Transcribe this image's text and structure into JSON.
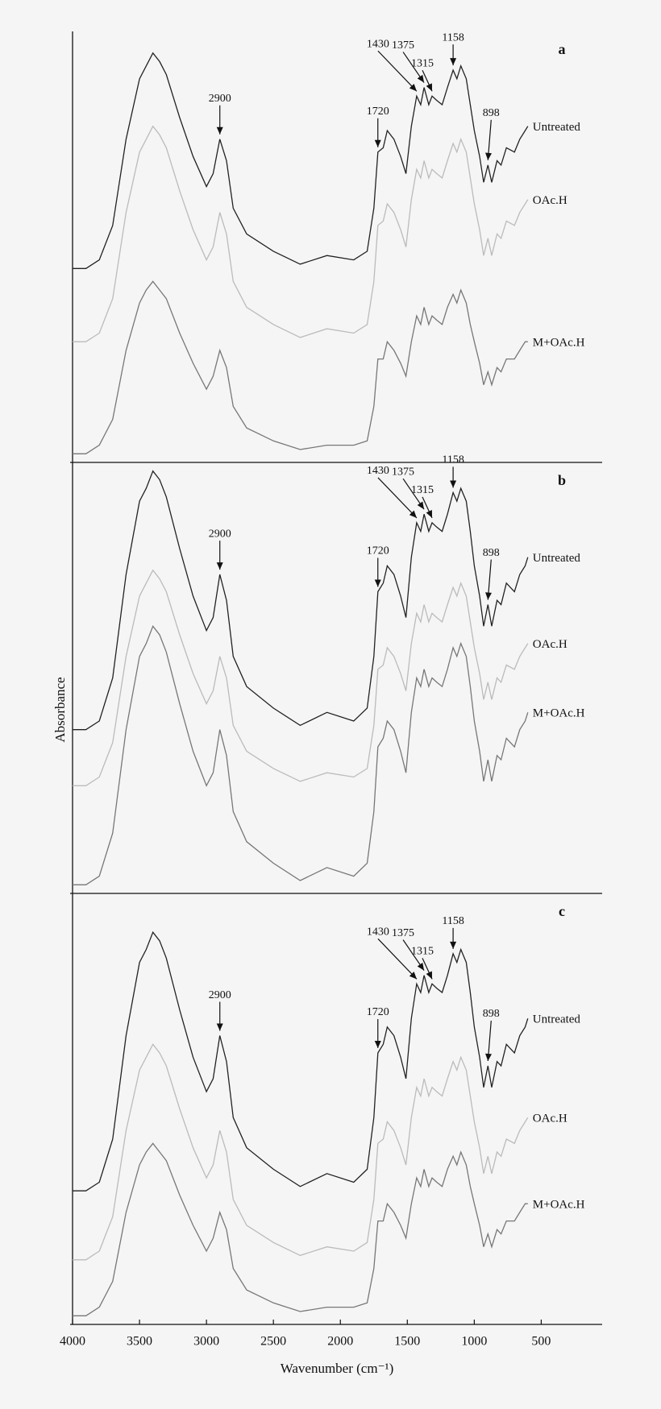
{
  "chart_data": {
    "type": "line",
    "xlabel": "Wavenumber (cm⁻¹)",
    "ylabel": "Absorbance",
    "xlim": [
      4000,
      45
    ],
    "xticks": [
      4000,
      3500,
      3000,
      2500,
      2000,
      1500,
      1000,
      500
    ],
    "x": [
      4000,
      3900,
      3800,
      3700,
      3600,
      3500,
      3450,
      3400,
      3350,
      3300,
      3200,
      3100,
      3000,
      2950,
      2900,
      2850,
      2800,
      2700,
      2500,
      2300,
      2100,
      1900,
      1800,
      1750,
      1720,
      1680,
      1650,
      1600,
      1550,
      1510,
      1470,
      1430,
      1400,
      1375,
      1340,
      1315,
      1280,
      1240,
      1200,
      1158,
      1130,
      1100,
      1060,
      1030,
      1000,
      960,
      930,
      898,
      870,
      830,
      800,
      760,
      700,
      660,
      620,
      600
    ],
    "panels": [
      {
        "label": "a",
        "ylim": [
          0,
          100
        ],
        "series": [
          {
            "name": "Untreated",
            "color": "#222222",
            "values": [
              45,
              45,
              47,
              55,
              75,
              89,
              92,
              95,
              93,
              90,
              80,
              71,
              64,
              67,
              75,
              70,
              59,
              53,
              49,
              46,
              48,
              47,
              49,
              59,
              72,
              73,
              77,
              75,
              71,
              67,
              78,
              85,
              83,
              87,
              83,
              85,
              84,
              83,
              87,
              91,
              89,
              92,
              89,
              83,
              77,
              71,
              65,
              69,
              65,
              70,
              69,
              73,
              72,
              75,
              77,
              78
            ]
          },
          {
            "name": "OAc.H",
            "color": "#bbbbbb",
            "values": [
              28,
              28,
              30,
              38,
              58,
              72,
              75,
              78,
              76,
              73,
              63,
              54,
              47,
              50,
              58,
              53,
              42,
              36,
              32,
              29,
              31,
              30,
              32,
              42,
              55,
              56,
              60,
              58,
              54,
              50,
              61,
              68,
              66,
              70,
              66,
              68,
              67,
              66,
              70,
              74,
              72,
              75,
              72,
              66,
              60,
              54,
              48,
              52,
              48,
              53,
              52,
              56,
              55,
              58,
              60,
              61
            ]
          },
          {
            "name": "M+OAc.H",
            "color": "#777777",
            "values": [
              2,
              2,
              4,
              10,
              26,
              37,
              40,
              42,
              40,
              38,
              30,
              23,
              17,
              20,
              26,
              22,
              13,
              8,
              5,
              3,
              4,
              4,
              5,
              13,
              24,
              24,
              28,
              26,
              23,
              20,
              28,
              34,
              32,
              36,
              32,
              34,
              33,
              32,
              36,
              39,
              37,
              40,
              37,
              32,
              28,
              23,
              18,
              21,
              18,
              22,
              21,
              24,
              24,
              26,
              28,
              28
            ]
          }
        ],
        "annotations": [
          {
            "label": "2900",
            "x": 2900
          },
          {
            "label": "1720",
            "x": 1720
          },
          {
            "label": "1430",
            "x": 1430
          },
          {
            "label": "1375",
            "x": 1375
          },
          {
            "label": "1315",
            "x": 1315
          },
          {
            "label": "1158",
            "x": 1158
          },
          {
            "label": "898",
            "x": 898
          }
        ]
      },
      {
        "label": "b",
        "ylim": [
          0,
          100
        ],
        "series": [
          {
            "name": "Untreated",
            "color": "#222222",
            "values": [
              38,
              38,
              40,
              50,
              74,
              91,
              94,
              98,
              96,
              92,
              80,
              69,
              61,
              64,
              74,
              68,
              55,
              48,
              43,
              39,
              42,
              40,
              43,
              55,
              70,
              72,
              76,
              74,
              69,
              64,
              78,
              86,
              84,
              88,
              84,
              86,
              85,
              84,
              88,
              93,
              91,
              94,
              91,
              84,
              76,
              69,
              62,
              67,
              62,
              68,
              67,
              72,
              70,
              74,
              76,
              78
            ]
          },
          {
            "name": "OAc.H",
            "color": "#bbbbbb",
            "values": [
              25,
              25,
              27,
              35,
              55,
              69,
              72,
              75,
              73,
              70,
              60,
              51,
              44,
              47,
              55,
              50,
              39,
              33,
              29,
              26,
              28,
              27,
              29,
              39,
              52,
              53,
              57,
              55,
              51,
              47,
              58,
              65,
              63,
              67,
              63,
              65,
              64,
              63,
              67,
              71,
              69,
              72,
              69,
              63,
              57,
              51,
              45,
              49,
              45,
              50,
              49,
              53,
              52,
              55,
              57,
              58
            ]
          },
          {
            "name": "M+OAc.H",
            "color": "#777777",
            "values": [
              2,
              2,
              4,
              14,
              38,
              55,
              58,
              62,
              60,
              56,
              44,
              33,
              25,
              28,
              38,
              32,
              19,
              12,
              7,
              3,
              6,
              4,
              7,
              19,
              34,
              36,
              40,
              38,
              33,
              28,
              42,
              50,
              48,
              52,
              48,
              50,
              49,
              48,
              52,
              57,
              55,
              58,
              55,
              48,
              40,
              33,
              26,
              31,
              26,
              32,
              31,
              36,
              34,
              38,
              40,
              42
            ]
          }
        ],
        "annotations": [
          {
            "label": "2900",
            "x": 2900
          },
          {
            "label": "1720",
            "x": 1720
          },
          {
            "label": "1430",
            "x": 1430
          },
          {
            "label": "1375",
            "x": 1375
          },
          {
            "label": "1315",
            "x": 1315
          },
          {
            "label": "1158",
            "x": 1158
          },
          {
            "label": "898",
            "x": 898
          }
        ]
      },
      {
        "label": "c",
        "ylim": [
          0,
          100
        ],
        "series": [
          {
            "name": "Untreated",
            "color": "#222222",
            "values": [
              31,
              31,
              33,
              43,
              67,
              84,
              87,
              91,
              89,
              85,
              73,
              62,
              54,
              57,
              67,
              61,
              48,
              41,
              36,
              32,
              35,
              33,
              36,
              48,
              63,
              65,
              69,
              67,
              62,
              57,
              71,
              79,
              77,
              81,
              77,
              79,
              78,
              77,
              81,
              86,
              84,
              87,
              84,
              77,
              69,
              62,
              55,
              60,
              55,
              61,
              60,
              65,
              63,
              67,
              69,
              71
            ]
          },
          {
            "name": "OAc.H",
            "color": "#bbbbbb",
            "values": [
              15,
              15,
              17,
              25,
              45,
              59,
              62,
              65,
              63,
              60,
              50,
              41,
              34,
              37,
              45,
              40,
              29,
              23,
              19,
              16,
              18,
              17,
              19,
              29,
              42,
              43,
              47,
              45,
              41,
              37,
              48,
              55,
              53,
              57,
              53,
              55,
              54,
              53,
              57,
              61,
              59,
              62,
              59,
              53,
              47,
              41,
              35,
              39,
              35,
              40,
              39,
              43,
              42,
              45,
              47,
              48
            ]
          },
          {
            "name": "M+OAc.H",
            "color": "#777777",
            "values": [
              2,
              2,
              4,
              10,
              26,
              37,
              40,
              42,
              40,
              38,
              30,
              23,
              17,
              20,
              26,
              22,
              13,
              8,
              5,
              3,
              4,
              4,
              5,
              13,
              24,
              24,
              28,
              26,
              23,
              20,
              28,
              34,
              32,
              36,
              32,
              34,
              33,
              32,
              36,
              39,
              37,
              40,
              37,
              32,
              28,
              23,
              18,
              21,
              18,
              22,
              21,
              24,
              24,
              26,
              28,
              28
            ]
          }
        ],
        "annotations": [
          {
            "label": "2900",
            "x": 2900
          },
          {
            "label": "1720",
            "x": 1720
          },
          {
            "label": "1430",
            "x": 1430
          },
          {
            "label": "1375",
            "x": 1375
          },
          {
            "label": "1315",
            "x": 1315
          },
          {
            "label": "1158",
            "x": 1158
          },
          {
            "label": "898",
            "x": 898
          }
        ]
      }
    ]
  }
}
